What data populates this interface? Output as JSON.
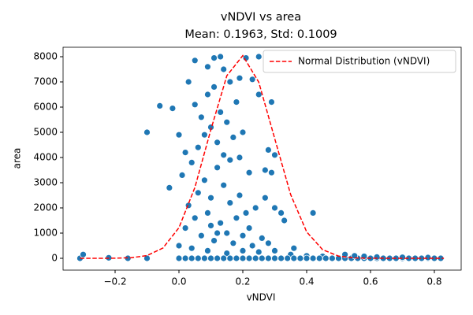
{
  "chart_data": {
    "type": "scatter",
    "title": "vNDVI vs area",
    "subtitle": "Mean: 0.1963, Std: 0.1009",
    "x_label": "vNDVI",
    "y_label": "area",
    "xlim": [
      -0.363,
      0.884
    ],
    "ylim": [
      -469,
      8375
    ],
    "xticks": [
      {
        "value": -0.2,
        "label": "−0.2"
      },
      {
        "value": 0,
        "label": "0.0"
      },
      0.2,
      0.4,
      0.6,
      0.8
    ],
    "yticks": [
      0,
      1000,
      2000,
      3000,
      4000,
      5000,
      6000,
      7000,
      8000
    ],
    "legend": "upper right",
    "series": [
      {
        "type": "scatter",
        "color": "#1f77b4",
        "x": [
          -0.31,
          -0.3,
          -0.22,
          -0.16,
          -0.1,
          -0.1,
          -0.06,
          -0.02,
          -0.03,
          0.42,
          0.29,
          0.25,
          0.21,
          0.13,
          0.11,
          0.05,
          0.09,
          0.03,
          0.14,
          0.19,
          0.23,
          0.25,
          0.28,
          0.3,
          0.27,
          0.29,
          0.33,
          0.32,
          0.36,
          0.3,
          0.27,
          0,
          0.02,
          0.03,
          0.05,
          0.06,
          0.07,
          0.08,
          0.09,
          0.1,
          0.11,
          0.12,
          0.13,
          0.14,
          0.15,
          0.16,
          0.17,
          0.18,
          0.19,
          0.2,
          0.21,
          0.22,
          0.23,
          0.24,
          0.26,
          0.28,
          0.04,
          0.06,
          0.08,
          0.1,
          0.12,
          0.14,
          0.16,
          0.02,
          0,
          0.01,
          0.07,
          0.05,
          0.09,
          0.11,
          0.13,
          0.15,
          0.17,
          0.19,
          0.22,
          0.2,
          0.18,
          0.16,
          0.04,
          0.09,
          0.15,
          0.2,
          0.25,
          0.3,
          0.35,
          0.4,
          0.45,
          0.12,
          0.1,
          0,
          0.02,
          0.04,
          0.06,
          0.08,
          0.1,
          0.12,
          0.14,
          0.16,
          0.18,
          0.2,
          0.22,
          0.24,
          0.26,
          0.28,
          0.3,
          0.32,
          0.34,
          0.36,
          0.38,
          0.4,
          0.42,
          0.44,
          0.46,
          0.48,
          0.5,
          0.52,
          0.54,
          0.56,
          0.58,
          0.6,
          0.62,
          0.64,
          0.66,
          0.68,
          0.7,
          0.72,
          0.74,
          0.76,
          0.78,
          0.8,
          0.82,
          0.52,
          0.55,
          0.58,
          0.62,
          0.7,
          0.78
        ],
        "values": [
          0,
          150,
          20,
          0,
          5000,
          0,
          6050,
          5950,
          2800,
          1800,
          6200,
          8000,
          7950,
          8000,
          7950,
          7850,
          7600,
          7000,
          7500,
          7150,
          7100,
          6500,
          4300,
          4100,
          3500,
          3400,
          1500,
          1800,
          400,
          2000,
          2400,
          500,
          1200,
          2100,
          1600,
          2600,
          900,
          3100,
          1800,
          2400,
          700,
          3600,
          1400,
          2900,
          1000,
          2200,
          600,
          1600,
          2500,
          900,
          1800,
          1200,
          500,
          2000,
          800,
          600,
          3800,
          4400,
          4900,
          5200,
          4600,
          4100,
          3900,
          4200,
          4900,
          3300,
          5600,
          6100,
          6500,
          6800,
          5800,
          5400,
          4800,
          4000,
          3400,
          5000,
          6200,
          7000,
          400,
          300,
          200,
          300,
          250,
          300,
          150,
          100,
          80,
          1000,
          1300,
          0,
          0,
          0,
          0,
          0,
          0,
          0,
          0,
          0,
          0,
          0,
          0,
          0,
          0,
          0,
          0,
          0,
          0,
          0,
          0,
          0,
          0,
          0,
          0,
          0,
          0,
          0,
          0,
          0,
          0,
          0,
          0,
          0,
          0,
          0,
          0,
          0,
          0,
          0,
          0,
          0,
          0,
          150,
          100,
          80,
          50,
          40,
          30
        ]
      },
      {
        "type": "line",
        "name": "Normal Distribution (vNDVI)",
        "color": "#ff0000",
        "dash": true,
        "x": [
          -0.31,
          -0.3,
          -0.25,
          -0.2,
          -0.15,
          -0.1,
          -0.05,
          0,
          0.05,
          0.1,
          0.15,
          0.2,
          0.25,
          0.3,
          0.35,
          0.4,
          0.45,
          0.5,
          0.55,
          0.6,
          0.7,
          0.8,
          0.83
        ],
        "values": [
          0,
          0,
          0,
          4,
          22,
          108,
          409,
          1213,
          2814,
          5105,
          7245,
          8044,
          6988,
          4749,
          2524,
          1049,
          341,
          87,
          17,
          3,
          0,
          0,
          0
        ]
      }
    ]
  }
}
